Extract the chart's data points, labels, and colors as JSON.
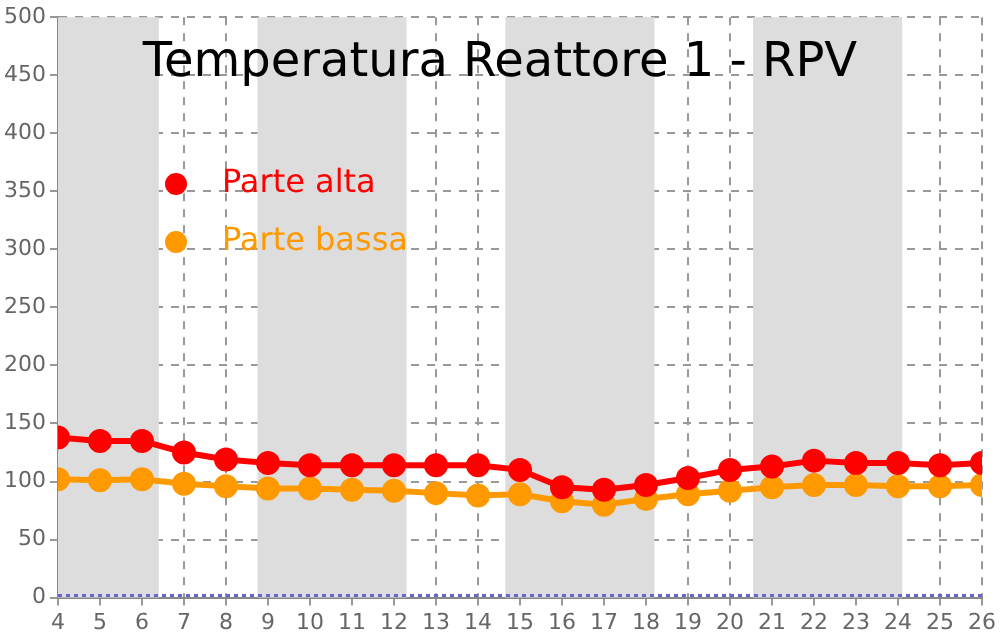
{
  "chart_data": {
    "type": "line",
    "title": "Temperatura Reattore 1 - RPV",
    "x": [
      4,
      5,
      6,
      7,
      8,
      9,
      10,
      11,
      12,
      13,
      14,
      15,
      16,
      17,
      18,
      19,
      20,
      21,
      22,
      23,
      24,
      25,
      26
    ],
    "series": [
      {
        "name": "Parte alta",
        "color": "#ff0000",
        "values": [
          138,
          135,
          135,
          125,
          119,
          116,
          114,
          114,
          114,
          114,
          114,
          110,
          95,
          93,
          97,
          103,
          110,
          113,
          118,
          116,
          116,
          114,
          116
        ]
      },
      {
        "name": "Parte bassa",
        "color": "#ff9900",
        "values": [
          102,
          101,
          102,
          98,
          96,
          94,
          94,
          93,
          92,
          90,
          88,
          89,
          83,
          80,
          85,
          89,
          92,
          95,
          97,
          97,
          96,
          96,
          97
        ]
      }
    ],
    "xlim": [
      4,
      26
    ],
    "xticks": [
      4,
      5,
      6,
      7,
      8,
      9,
      10,
      11,
      12,
      13,
      14,
      15,
      16,
      17,
      18,
      19,
      20,
      21,
      22,
      23,
      24,
      25,
      26
    ],
    "ylim": [
      0,
      500
    ],
    "yticks": [
      0,
      50,
      100,
      150,
      200,
      250,
      300,
      350,
      400,
      450,
      500
    ],
    "bands": [
      {
        "axis": "x",
        "from": 4,
        "to": 6.4,
        "color": "#dcdddc"
      },
      {
        "axis": "x",
        "from": 8.75,
        "to": 12.3,
        "color": "#dcdddc"
      },
      {
        "axis": "x",
        "from": 14.65,
        "to": 18.2,
        "color": "#dcdddc"
      },
      {
        "axis": "x",
        "from": 20.55,
        "to": 24.1,
        "color": "#dcdddc"
      }
    ],
    "ref_lines": [
      {
        "axis": "y",
        "value": 0,
        "color": "#6666cc",
        "line_style": "dotted"
      }
    ],
    "grid": true,
    "legend": "top left",
    "marker": "circle",
    "line_style": "solid"
  }
}
